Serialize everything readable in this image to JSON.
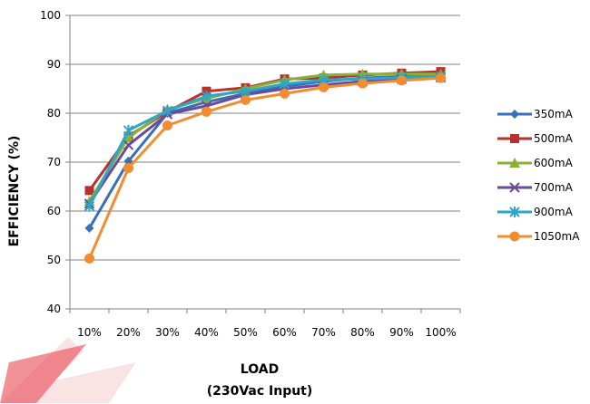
{
  "chart_data": {
    "type": "line",
    "title": "",
    "xlabel": "LOAD",
    "xlabel_sub": "(230Vac Input)",
    "ylabel": "EFFICIENCY (%)",
    "ylim": [
      40,
      100
    ],
    "yticks": [
      "40",
      "50",
      "60",
      "70",
      "80",
      "90",
      "100"
    ],
    "categories": [
      "10%",
      "20%",
      "30%",
      "40%",
      "50%",
      "60%",
      "70%",
      "80%",
      "90%",
      "100%"
    ],
    "grid": "horizontal",
    "legend": "right",
    "series": [
      {
        "name": "350mA",
        "color": "#3A6FB7",
        "marker": "diamond",
        "values": [
          56.5,
          70.2,
          80.0,
          82.3,
          84.0,
          85.5,
          86.5,
          87.2,
          87.5,
          87.8
        ]
      },
      {
        "name": "500mA",
        "color": "#B5322E",
        "marker": "square",
        "values": [
          64.2,
          75.3,
          80.3,
          84.5,
          85.2,
          87.0,
          87.2,
          87.8,
          88.2,
          88.5
        ]
      },
      {
        "name": "600mA",
        "color": "#8AB135",
        "marker": "triangle",
        "values": [
          62.0,
          75.0,
          80.8,
          83.0,
          85.0,
          86.8,
          87.8,
          88.0,
          88.0,
          88.0
        ]
      },
      {
        "name": "700mA",
        "color": "#6A4A9C",
        "marker": "x",
        "values": [
          61.5,
          73.5,
          79.8,
          81.5,
          83.8,
          85.0,
          85.8,
          86.5,
          87.0,
          87.3
        ]
      },
      {
        "name": "900mA",
        "color": "#2FA6C6",
        "marker": "star",
        "values": [
          61.0,
          76.5,
          80.5,
          83.5,
          84.5,
          86.0,
          86.8,
          87.0,
          87.3,
          87.5
        ]
      },
      {
        "name": "1050mA",
        "color": "#F28C30",
        "marker": "circle",
        "values": [
          50.3,
          68.8,
          77.5,
          80.3,
          82.7,
          84.0,
          85.3,
          86.1,
          86.7,
          87.2
        ]
      }
    ]
  }
}
